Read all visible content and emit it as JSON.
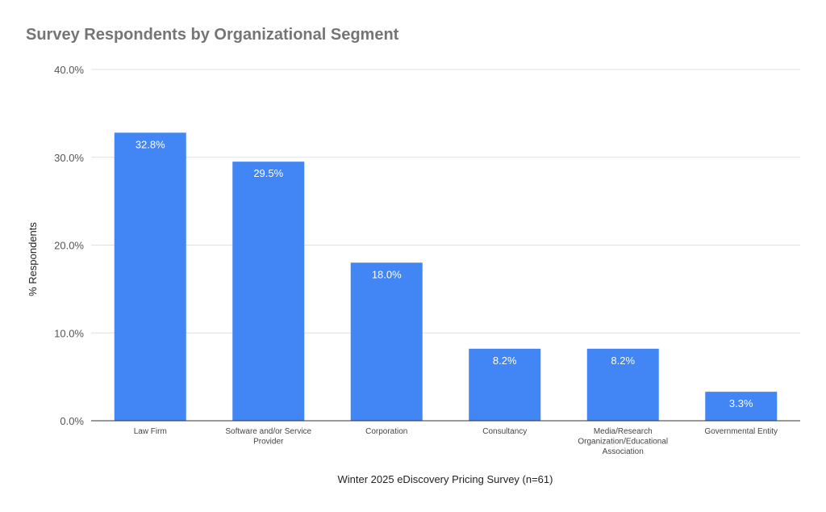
{
  "chart_data": {
    "type": "bar",
    "title": "Survey Respondents by Organizational Segment",
    "xlabel": "Winter 2025 eDiscovery Pricing Survey (n=61)",
    "ylabel": "% Respondents",
    "categories": [
      "Law Firm",
      "Software and/or Service Provider",
      "Corporation",
      "Consultancy",
      "Media/Research Organization/Educational Association",
      "Governmental Entity"
    ],
    "category_label_lines": [
      [
        "Law Firm"
      ],
      [
        "Software and/or Service",
        "Provider"
      ],
      [
        "Corporation"
      ],
      [
        "Consultancy"
      ],
      [
        "Media/Research",
        "Organization/Educational",
        "Association"
      ],
      [
        "Governmental Entity"
      ]
    ],
    "values": [
      32.8,
      29.5,
      18.0,
      8.2,
      8.2,
      3.3
    ],
    "data_labels": [
      "32.8%",
      "29.5%",
      "18.0%",
      "8.2%",
      "8.2%",
      "3.3%"
    ],
    "ylim": [
      0,
      40
    ],
    "yticks": [
      0,
      10,
      20,
      30,
      40
    ],
    "ytick_labels": [
      "0.0%",
      "10.0%",
      "20.0%",
      "30.0%",
      "40.0%"
    ],
    "grid": true,
    "legend": "none",
    "bar_color": "#4285f4",
    "gridline_color": "#e0e0e0",
    "axis_color": "#333333"
  }
}
